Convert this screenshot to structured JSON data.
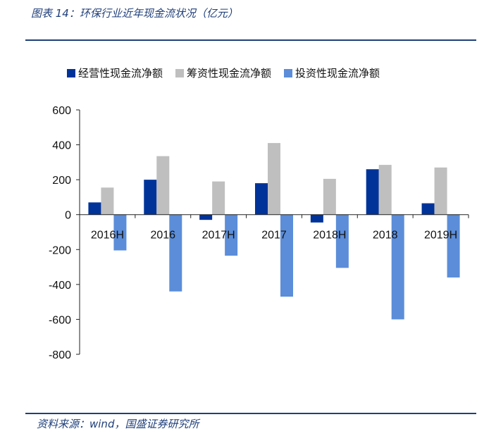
{
  "header": {
    "title": "图表 14：环保行业近年现金流状况（亿元）"
  },
  "footer": {
    "source": "资料来源：wind，国盛证券研究所"
  },
  "colors": {
    "accent": "#1f3f7a",
    "operating": "#003399",
    "financing": "#bfbfbf",
    "investing": "#5b8dd9"
  },
  "chart_data": {
    "type": "bar",
    "categories": [
      "2016H",
      "2016",
      "2017H",
      "2017",
      "2018H",
      "2018",
      "2019H"
    ],
    "series": [
      {
        "name": "经营性现金流净额",
        "values": [
          70,
          200,
          -30,
          180,
          -45,
          260,
          65
        ]
      },
      {
        "name": "筹资性现金流净额",
        "values": [
          155,
          335,
          190,
          410,
          205,
          285,
          270
        ]
      },
      {
        "name": "投资性现金流净额",
        "values": [
          -205,
          -440,
          -235,
          -470,
          -305,
          -600,
          -360
        ]
      }
    ],
    "yticks": [
      "600",
      "400",
      "200",
      "0",
      "-200",
      "-400",
      "-600",
      "-800"
    ],
    "ylim": [
      -800,
      600
    ],
    "legend_position": "top"
  }
}
